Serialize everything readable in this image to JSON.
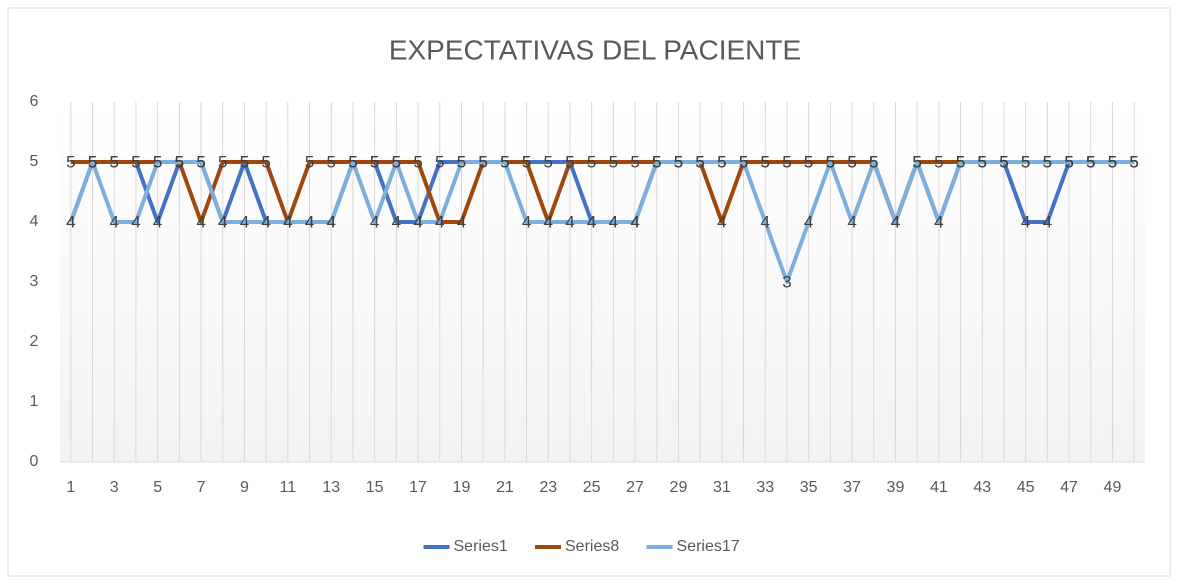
{
  "chart_data": {
    "type": "line",
    "title": "EXPECTATIVAS DEL PACIENTE",
    "categories": [
      1,
      null,
      3,
      null,
      5,
      null,
      7,
      null,
      9,
      null,
      11,
      null,
      13,
      null,
      15,
      null,
      17,
      null,
      19,
      null,
      21,
      null,
      23,
      null,
      25,
      null,
      27,
      null,
      29,
      null,
      31,
      null,
      33,
      null,
      35,
      null,
      37,
      null,
      39,
      null,
      41,
      null,
      43,
      null,
      45,
      null,
      47,
      null,
      49,
      null
    ],
    "series": [
      {
        "name": "Series1",
        "color": "#4472c4",
        "values": [
          4,
          5,
          5,
          5,
          4,
          5,
          5,
          4,
          5,
          4,
          4,
          4,
          4,
          5,
          5,
          4,
          4,
          5,
          5,
          5,
          5,
          5,
          5,
          5,
          4,
          4,
          4,
          5,
          5,
          5,
          5,
          5,
          5,
          5,
          5,
          5,
          5,
          5,
          4,
          5,
          4,
          5,
          5,
          5,
          4,
          4,
          5,
          5,
          5,
          5
        ]
      },
      {
        "name": "Series8",
        "color": "#9e480e",
        "values": [
          5,
          5,
          5,
          5,
          5,
          5,
          4,
          5,
          5,
          5,
          4,
          5,
          5,
          5,
          5,
          5,
          5,
          4,
          4,
          5,
          5,
          5,
          4,
          5,
          5,
          5,
          5,
          5,
          5,
          5,
          4,
          5,
          5,
          5,
          5,
          5,
          5,
          5,
          4,
          5,
          5,
          5,
          5,
          5,
          5,
          5,
          5,
          5,
          5,
          5
        ]
      },
      {
        "name": "Series17",
        "color": "#7cafdd",
        "values": [
          4,
          5,
          4,
          4,
          5,
          5,
          5,
          4,
          4,
          4,
          4,
          4,
          4,
          5,
          4,
          5,
          4,
          4,
          5,
          5,
          5,
          4,
          4,
          4,
          4,
          4,
          4,
          5,
          5,
          5,
          5,
          5,
          4,
          3,
          4,
          5,
          4,
          5,
          4,
          5,
          4,
          5,
          5,
          5,
          5,
          5,
          5,
          5,
          5,
          5
        ]
      }
    ],
    "ylim": [
      0,
      6
    ],
    "yticks": [
      0,
      1,
      2,
      3,
      4,
      5,
      6
    ],
    "grid": "x",
    "legend": "bottom",
    "data_labels": true
  }
}
